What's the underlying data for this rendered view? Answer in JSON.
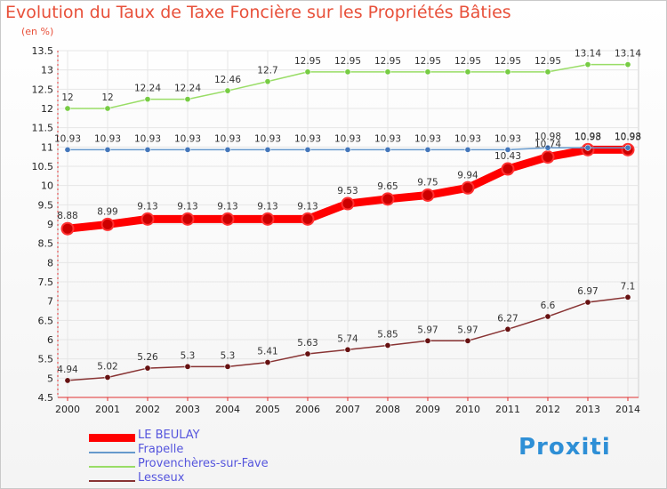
{
  "title": "Evolution du Taux de Taxe Foncière sur les Propriétés Bâties",
  "unit_label": "(en %)",
  "logo": "Proxiti",
  "colors": {
    "title": "#e8503a",
    "axis_red": "#e03030",
    "legend_text": "#5555dd"
  },
  "chart_data": {
    "type": "line",
    "title": "Evolution du Taux de Taxe Foncière sur les Propriétés Bâties",
    "xlabel": "",
    "ylabel": "(en %)",
    "x": [
      "2000",
      "2001",
      "2002",
      "2003",
      "2004",
      "2005",
      "2006",
      "2007",
      "2008",
      "2009",
      "2010",
      "2011",
      "2012",
      "2013",
      "2014"
    ],
    "ylim": [
      4.5,
      13.5
    ],
    "yticks": [
      4.5,
      5,
      5.5,
      6,
      6.5,
      7,
      7.5,
      8,
      8.5,
      9,
      9.5,
      10,
      10.5,
      11,
      11.5,
      12,
      12.5,
      13,
      13.5
    ],
    "series": [
      {
        "name": "LE BEULAY",
        "color": "#ff0000",
        "marker": "#cc0000",
        "values": [
          8.88,
          8.99,
          9.13,
          9.13,
          9.13,
          9.13,
          9.13,
          9.53,
          9.65,
          9.75,
          9.94,
          10.43,
          10.74,
          10.93,
          10.93
        ],
        "labels": [
          "8.88",
          "8.99",
          "9.13",
          "9.13",
          "9.13",
          "9.13",
          "9.13",
          "9.53",
          "9.65",
          "9.75",
          "9.94",
          "10.43",
          "10.74",
          "10.93",
          "10.93"
        ]
      },
      {
        "name": "Frapelle",
        "color": "#6699cc",
        "marker": "#4477bb",
        "values": [
          10.93,
          10.93,
          10.93,
          10.93,
          10.93,
          10.93,
          10.93,
          10.93,
          10.93,
          10.93,
          10.93,
          10.93,
          10.98,
          10.98,
          10.98
        ],
        "labels": [
          "10.93",
          "10.93",
          "10.93",
          "10.93",
          "10.93",
          "10.93",
          "10.93",
          "10.93",
          "10.93",
          "10.93",
          "10.93",
          "10.93",
          "10.98",
          "10.98",
          "10.98"
        ]
      },
      {
        "name": "Provenchères-sur-Fave",
        "color": "#99dd66",
        "marker": "#77cc44",
        "values": [
          12,
          12,
          12.24,
          12.24,
          12.46,
          12.7,
          12.95,
          12.95,
          12.95,
          12.95,
          12.95,
          12.95,
          12.95,
          13.14,
          13.14
        ],
        "labels": [
          "12",
          "12",
          "12.24",
          "12.24",
          "12.46",
          "12.7",
          "12.95",
          "12.95",
          "12.95",
          "12.95",
          "12.95",
          "12.95",
          "12.95",
          "13.14",
          "13.14"
        ]
      },
      {
        "name": "Lesseux",
        "color": "#883333",
        "marker": "#661111",
        "values": [
          4.94,
          5.02,
          5.26,
          5.3,
          5.3,
          5.41,
          5.63,
          5.74,
          5.85,
          5.97,
          5.97,
          6.27,
          6.6,
          6.97,
          7.1
        ],
        "labels": [
          "4.94",
          "5.02",
          "5.26",
          "5.3",
          "5.3",
          "5.41",
          "5.63",
          "5.74",
          "5.85",
          "5.97",
          "5.97",
          "6.27",
          "6.6",
          "6.97",
          "7.1"
        ]
      }
    ],
    "legend": [
      "LE BEULAY",
      "Frapelle",
      "Provenchères-sur-Fave",
      "Lesseux"
    ]
  }
}
